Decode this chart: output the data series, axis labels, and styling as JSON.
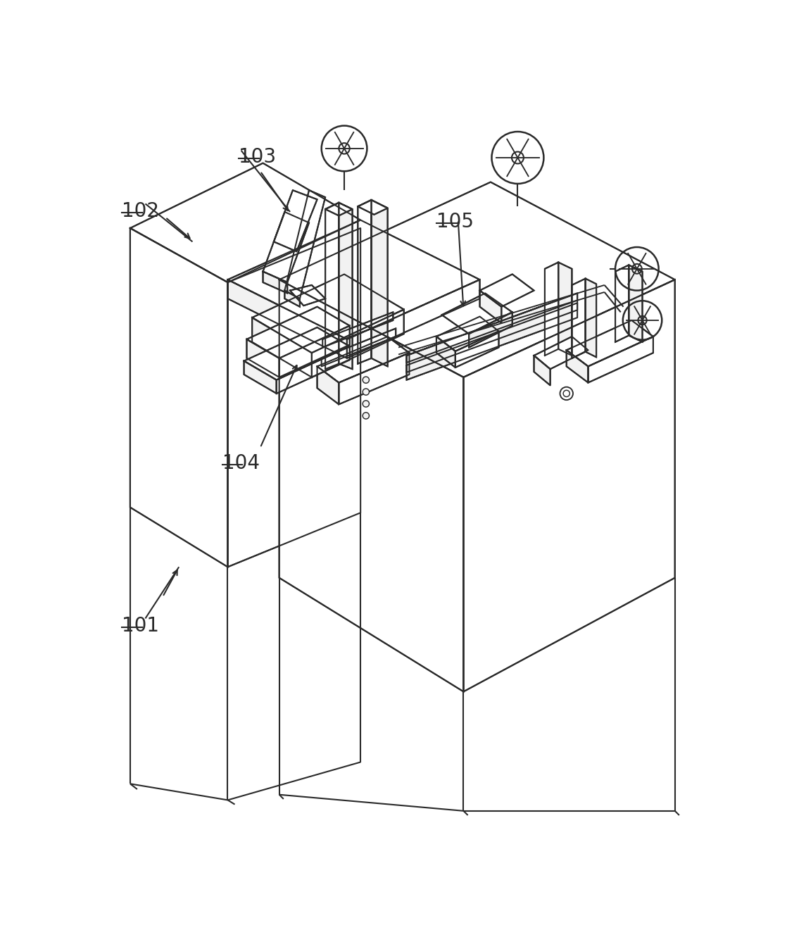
{
  "bg_color": "#ffffff",
  "line_color": "#2a2a2a",
  "line_width": 1.5,
  "label_fontsize": 20,
  "face_white": "#ffffff",
  "face_light": "#f2f2f2",
  "face_mid": "#e0e0e0"
}
